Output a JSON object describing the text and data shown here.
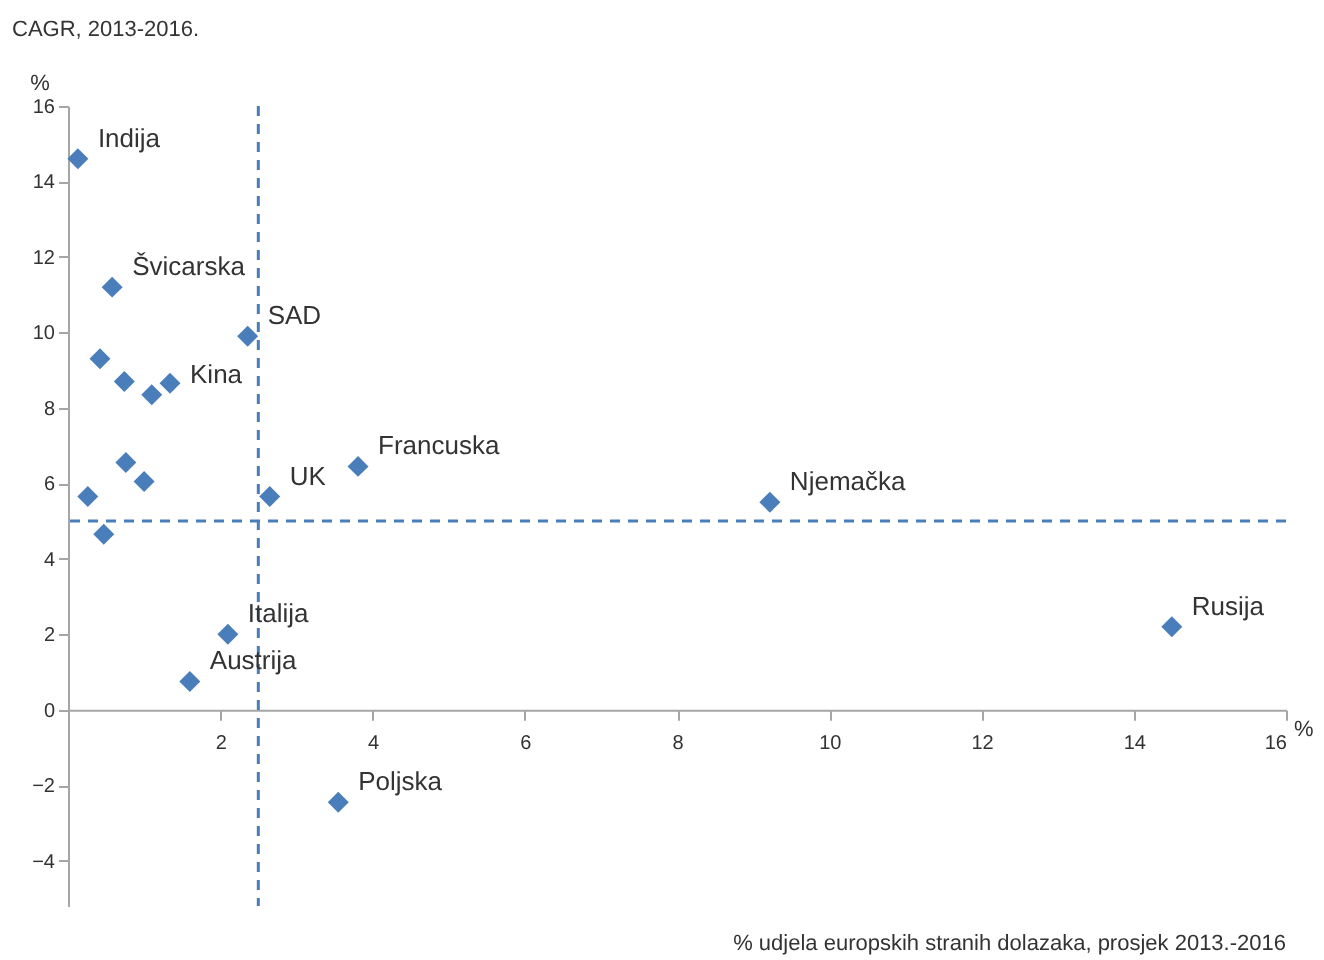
{
  "chart_data": {
    "type": "scatter",
    "title": "CAGR, 2013-2016.",
    "ylabel": "%",
    "xlabel": "% udjela europskih stranih dolazaka, prosjek 2013.-2016",
    "x": [
      0.13,
      0.58,
      2.36,
      0.42,
      0.74,
      1.34,
      1.1,
      0.76,
      1.0,
      0.26,
      2.65,
      3.81,
      9.22,
      0.47,
      2.1,
      1.6,
      3.55,
      14.5
    ],
    "series": [
      {
        "color": "#4a7ebb",
        "values": [
          14.6,
          11.2,
          9.9,
          9.3,
          8.7,
          8.65,
          8.35,
          6.55,
          6.05,
          5.65,
          5.65,
          6.45,
          5.5,
          4.65,
          2.0,
          0.75,
          -2.45,
          2.2
        ]
      }
    ],
    "marker": "diamond",
    "xlim": [
      0,
      16
    ],
    "xticks": [
      2,
      4,
      6,
      8,
      10,
      12,
      14,
      16
    ],
    "ylim": [
      -5.2,
      16
    ],
    "yticks": [
      -4,
      -2,
      0,
      2,
      4,
      6,
      8,
      10,
      12,
      14,
      16
    ],
    "grid": false,
    "ref_lines": [
      {
        "axis": "x",
        "value": 2.5,
        "color": "#4a7ebb",
        "line_style": "dashed"
      },
      {
        "axis": "y",
        "value": 5,
        "color": "#4a7ebb",
        "line_style": "dashed"
      }
    ],
    "annotations": [
      {
        "text": "Indija",
        "x": 0.13,
        "y": 14.6
      },
      {
        "text": "Švicarska",
        "x": 0.58,
        "y": 11.2
      },
      {
        "text": "SAD",
        "x": 2.36,
        "y": 9.9
      },
      {
        "text": "Kina",
        "x": 1.34,
        "y": 8.35
      },
      {
        "text": "UK",
        "x": 2.65,
        "y": 5.65
      },
      {
        "text": "Francuska",
        "x": 3.81,
        "y": 6.45
      },
      {
        "text": "Njemačka",
        "x": 9.22,
        "y": 5.5
      },
      {
        "text": "Italija",
        "x": 2.1,
        "y": 2.0
      },
      {
        "text": "Austrija",
        "x": 1.6,
        "y": 0.75
      },
      {
        "text": "Poljska",
        "x": 3.55,
        "y": -2.45
      },
      {
        "text": "Rusija",
        "x": 14.5,
        "y": 2.2
      },
      "%"
    ]
  }
}
